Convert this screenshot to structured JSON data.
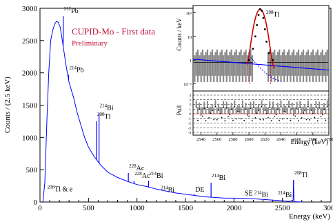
{
  "chart_data": [
    {
      "type": "line",
      "title": "CUPID-Mo - First data",
      "subtitle": "Preliminary",
      "xlabel": "Energy (keV)",
      "ylabel": "Counts / (2.5 keV)",
      "xlim": [
        0,
        3000
      ],
      "ylim": [
        0,
        3000
      ],
      "x_ticks": [
        0,
        500,
        1000,
        1500,
        2000,
        2500,
        3000
      ],
      "y_ticks": [
        0,
        500,
        1000,
        1500,
        2000,
        2500,
        3000
      ],
      "series": [
        {
          "color": "#0000ff",
          "x": [
            30,
            50,
            70,
            90,
            110,
            130,
            150,
            170,
            190,
            210,
            230,
            250,
            270,
            300,
            330,
            350,
            380,
            420,
            460,
            500,
            560,
            620,
            700,
            800,
            900,
            1000,
            1100,
            1200,
            1300,
            1400,
            1500,
            1600,
            1700,
            1800,
            1900,
            2000,
            2100,
            2200,
            2300,
            2400,
            2500,
            2560,
            2610,
            2614,
            2620,
            2700
          ],
          "y": [
            0,
            300,
            1200,
            2000,
            2500,
            2650,
            2750,
            2800,
            2780,
            2700,
            2500,
            2300,
            2100,
            1850,
            1700,
            1600,
            1400,
            1200,
            1000,
            850,
            700,
            580,
            460,
            380,
            320,
            270,
            240,
            200,
            170,
            140,
            120,
            100,
            80,
            70,
            60,
            60,
            55,
            50,
            40,
            30,
            20,
            10,
            20,
            340,
            5,
            0
          ]
        }
      ],
      "peaks": [
        {
          "x": 239,
          "y": 2880,
          "label": "Pb",
          "sup": "212"
        },
        {
          "x": 295,
          "y": 1970,
          "label": "Pb",
          "sup": "214"
        },
        {
          "x": 583,
          "y": 1250,
          "label": "Tl",
          "sup": "208"
        },
        {
          "x": 609,
          "y": 1380,
          "label": "Bi",
          "sup": "214"
        },
        {
          "x": 911,
          "y": 450,
          "label": "Ac",
          "sup": "228"
        },
        {
          "x": 969,
          "y": 330,
          "label": "Ac",
          "sup": "228"
        },
        {
          "x": 1120,
          "y": 330,
          "label": "Bi",
          "sup": "214"
        },
        {
          "x": 1238,
          "y": 110,
          "label": "Bi",
          "sup": "214"
        },
        {
          "x": 1593,
          "y": 120,
          "label": "DE",
          "sup": ""
        },
        {
          "x": 1764,
          "y": 300,
          "label": "Bi",
          "sup": "214"
        },
        {
          "x": 2104,
          "y": 60,
          "label": "SE",
          "sup": ""
        },
        {
          "x": 2204,
          "y": 40,
          "label": "Bi",
          "sup": "214"
        },
        {
          "x": 2448,
          "y": 30,
          "label": "Bi",
          "sup": "214"
        },
        {
          "x": 2615,
          "y": 340,
          "label": "Tl",
          "sup": "208"
        }
      ],
      "annotations": [
        {
          "text": "Tl & e",
          "sup": "208",
          "x": 360,
          "y": 250
        }
      ]
    },
    {
      "type": "line",
      "title": "",
      "xlabel": "Energy (keV)",
      "ylabel": "Counts / keV",
      "log_y": true,
      "xlim": [
        2530,
        2700
      ],
      "x_ticks": [
        2540,
        2560,
        2580,
        2600,
        2620,
        2640,
        2660,
        2680,
        2700
      ],
      "y_ticks": [
        "10²",
        "10",
        "1",
        "10⁻¹"
      ],
      "peak_label": {
        "text": "Tl",
        "sup": "208"
      },
      "data_points": {
        "x": [
          2600,
          2605,
          2608,
          2610,
          2612,
          2614,
          2616,
          2618,
          2620,
          2622,
          2625,
          2630
        ],
        "y": [
          1,
          3,
          10,
          30,
          80,
          140,
          120,
          60,
          20,
          6,
          2,
          1
        ]
      },
      "fit_color": "#cc0000",
      "background_color": "#0000ff",
      "pull_panel": {
        "ylabel": "Pull",
        "yticks": [
          4,
          3,
          2,
          1,
          0,
          -1,
          -2,
          -3,
          -4
        ]
      }
    }
  ]
}
